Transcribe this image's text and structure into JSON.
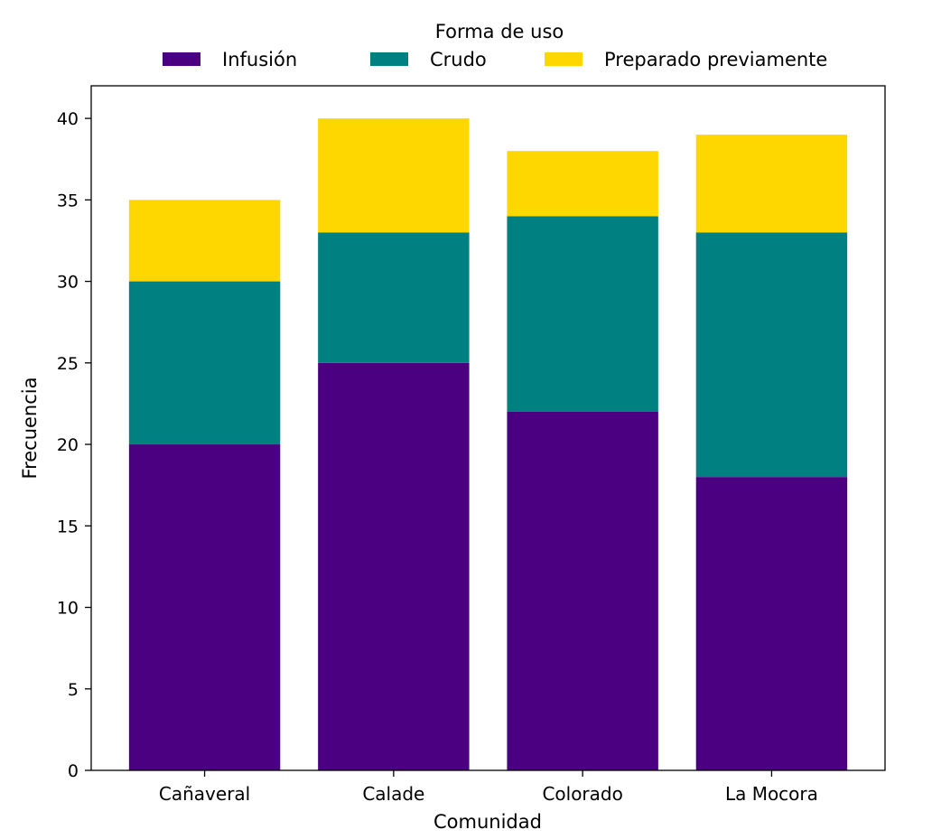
{
  "chart_data": {
    "type": "bar",
    "stacked": true,
    "title": "",
    "xlabel": "Comunidad",
    "ylabel": "Frecuencia",
    "categories": [
      "Cañaveral",
      "Calade",
      "Colorado",
      "La Mocora"
    ],
    "series": [
      {
        "name": "Infusión",
        "values": [
          20,
          25,
          22,
          18
        ],
        "color": "#4b0082"
      },
      {
        "name": "Crudo",
        "values": [
          10,
          8,
          12,
          15
        ],
        "color": "#008080"
      },
      {
        "name": "Preparado previamente",
        "values": [
          5,
          7,
          4,
          6
        ],
        "color": "#ffd700"
      }
    ],
    "ylim": [
      0,
      42
    ],
    "yticks": [
      0,
      5,
      10,
      15,
      20,
      25,
      30,
      35,
      40
    ],
    "grid": false,
    "legend": {
      "title": "Forma de uso",
      "placement": "top-center",
      "columns": 3
    }
  }
}
